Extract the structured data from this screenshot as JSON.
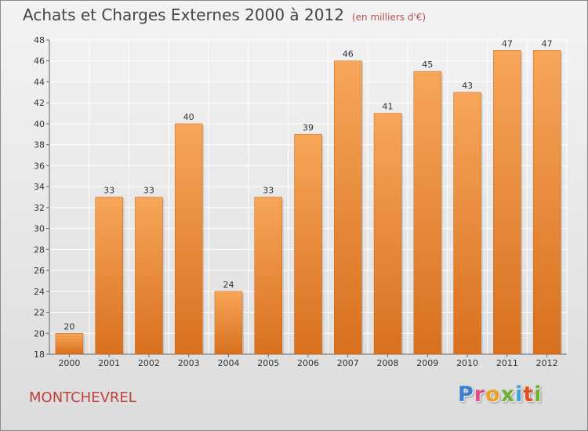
{
  "header": {
    "title": "Achats et Charges Externes 2000 à 2012",
    "subtitle": "(en milliers d'€)"
  },
  "footer": {
    "commune": "MONTCHEVREL",
    "brand": "Proxiti"
  },
  "colors": {
    "bar_top": "#f7a65a",
    "bar_bottom": "#d8701e",
    "grid": "#ffffff",
    "title_text": "#444444",
    "commune_text": "#c0403a",
    "brand_letters": [
      "#3a7fd0",
      "#e04a8a",
      "#f0a020",
      "#70b030",
      "#3aa0e0",
      "#e05020",
      "#70b030"
    ]
  },
  "chart_data": {
    "type": "bar",
    "title": "Achats et Charges Externes 2000 à 2012",
    "subtitle": "(en milliers d'€)",
    "xlabel": "",
    "ylabel": "",
    "categories": [
      "2000",
      "2001",
      "2002",
      "2003",
      "2004",
      "2005",
      "2006",
      "2007",
      "2008",
      "2009",
      "2010",
      "2011",
      "2012"
    ],
    "values": [
      20,
      33,
      33,
      40,
      24,
      33,
      39,
      46,
      41,
      45,
      43,
      47,
      47
    ],
    "ylim": [
      18,
      48
    ],
    "yticks": [
      18,
      20,
      22,
      24,
      26,
      28,
      30,
      32,
      34,
      36,
      38,
      40,
      42,
      44,
      46,
      48
    ],
    "grid": true,
    "legend": "none"
  }
}
